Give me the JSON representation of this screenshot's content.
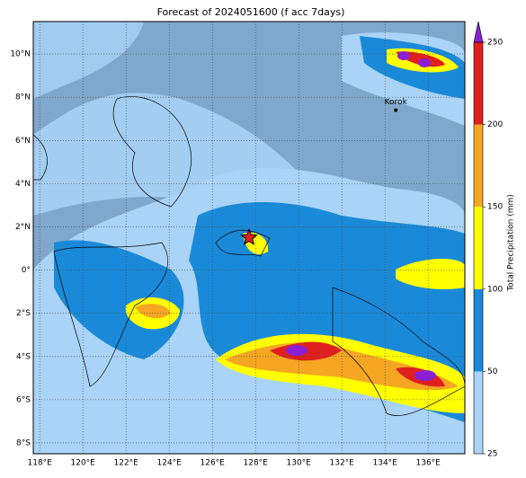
{
  "map": {
    "title": "Forecast of 2024051600 (f acc 7days)",
    "lonlim": [
      117.7,
      137.7
    ],
    "latlim": [
      -8.5,
      11.5
    ],
    "lon_ticks": [
      {
        "value": 118,
        "label": "118°E"
      },
      {
        "value": 120,
        "label": "120°E"
      },
      {
        "value": 122,
        "label": "122°E"
      },
      {
        "value": 124,
        "label": "124°E"
      },
      {
        "value": 126,
        "label": "126°E"
      },
      {
        "value": 128,
        "label": "128°E"
      },
      {
        "value": 130,
        "label": "130°E"
      },
      {
        "value": 132,
        "label": "132°E"
      },
      {
        "value": 134,
        "label": "134°E"
      },
      {
        "value": 136,
        "label": "136°E"
      }
    ],
    "lat_ticks": [
      {
        "value": 10,
        "label": "10°N"
      },
      {
        "value": 8,
        "label": "8°N"
      },
      {
        "value": 6,
        "label": "6°N"
      },
      {
        "value": 4,
        "label": "4°N"
      },
      {
        "value": 2,
        "label": "2°N"
      },
      {
        "value": 0,
        "label": "0°"
      },
      {
        "value": -2,
        "label": "2°S"
      },
      {
        "value": -4,
        "label": "4°S"
      },
      {
        "value": -6,
        "label": "6°S"
      },
      {
        "value": -8,
        "label": "8°S"
      }
    ],
    "places": [
      {
        "name": "Korok",
        "lon": 134.5,
        "lat": 7.4
      }
    ],
    "star": {
      "lon": 127.7,
      "lat": 1.5
    },
    "colorbar": {
      "label": "Total Precipitation (mm)",
      "levels": [
        25,
        50,
        100,
        150,
        200,
        250
      ],
      "colors": [
        "#a9d3f7",
        "#1a8ad8",
        "#ffff00",
        "#f5a623",
        "#e0201e"
      ],
      "extend_color": "#8c1fd6"
    }
  }
}
